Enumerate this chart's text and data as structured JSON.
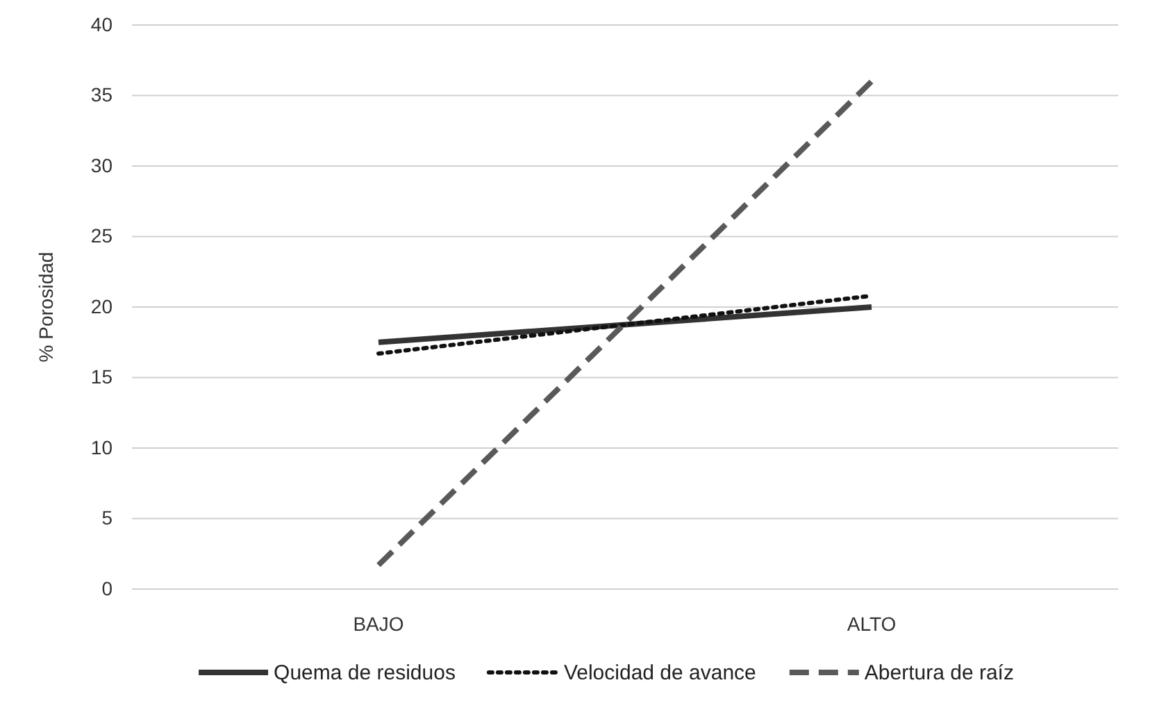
{
  "chart_data": {
    "type": "line",
    "ylabel": "% Porosidad",
    "categories": [
      "BAJO",
      "ALTO"
    ],
    "ylim": [
      0,
      40
    ],
    "yticks": [
      0,
      5,
      10,
      15,
      20,
      25,
      30,
      35,
      40
    ],
    "grid": "y",
    "legend": "bottom",
    "marker": "none",
    "series": [
      {
        "name": "Quema de residuos",
        "color": "#333333",
        "line_style": "solid",
        "values": [
          17.5,
          20
        ]
      },
      {
        "name": "Velocidad de avance",
        "color": "#111111",
        "line_style": "dotted",
        "values": [
          16.7,
          20.8
        ]
      },
      {
        "name": "Abertura de raíz",
        "color": "#595959",
        "line_style": "dashed",
        "values": [
          1.7,
          36
        ]
      }
    ]
  }
}
